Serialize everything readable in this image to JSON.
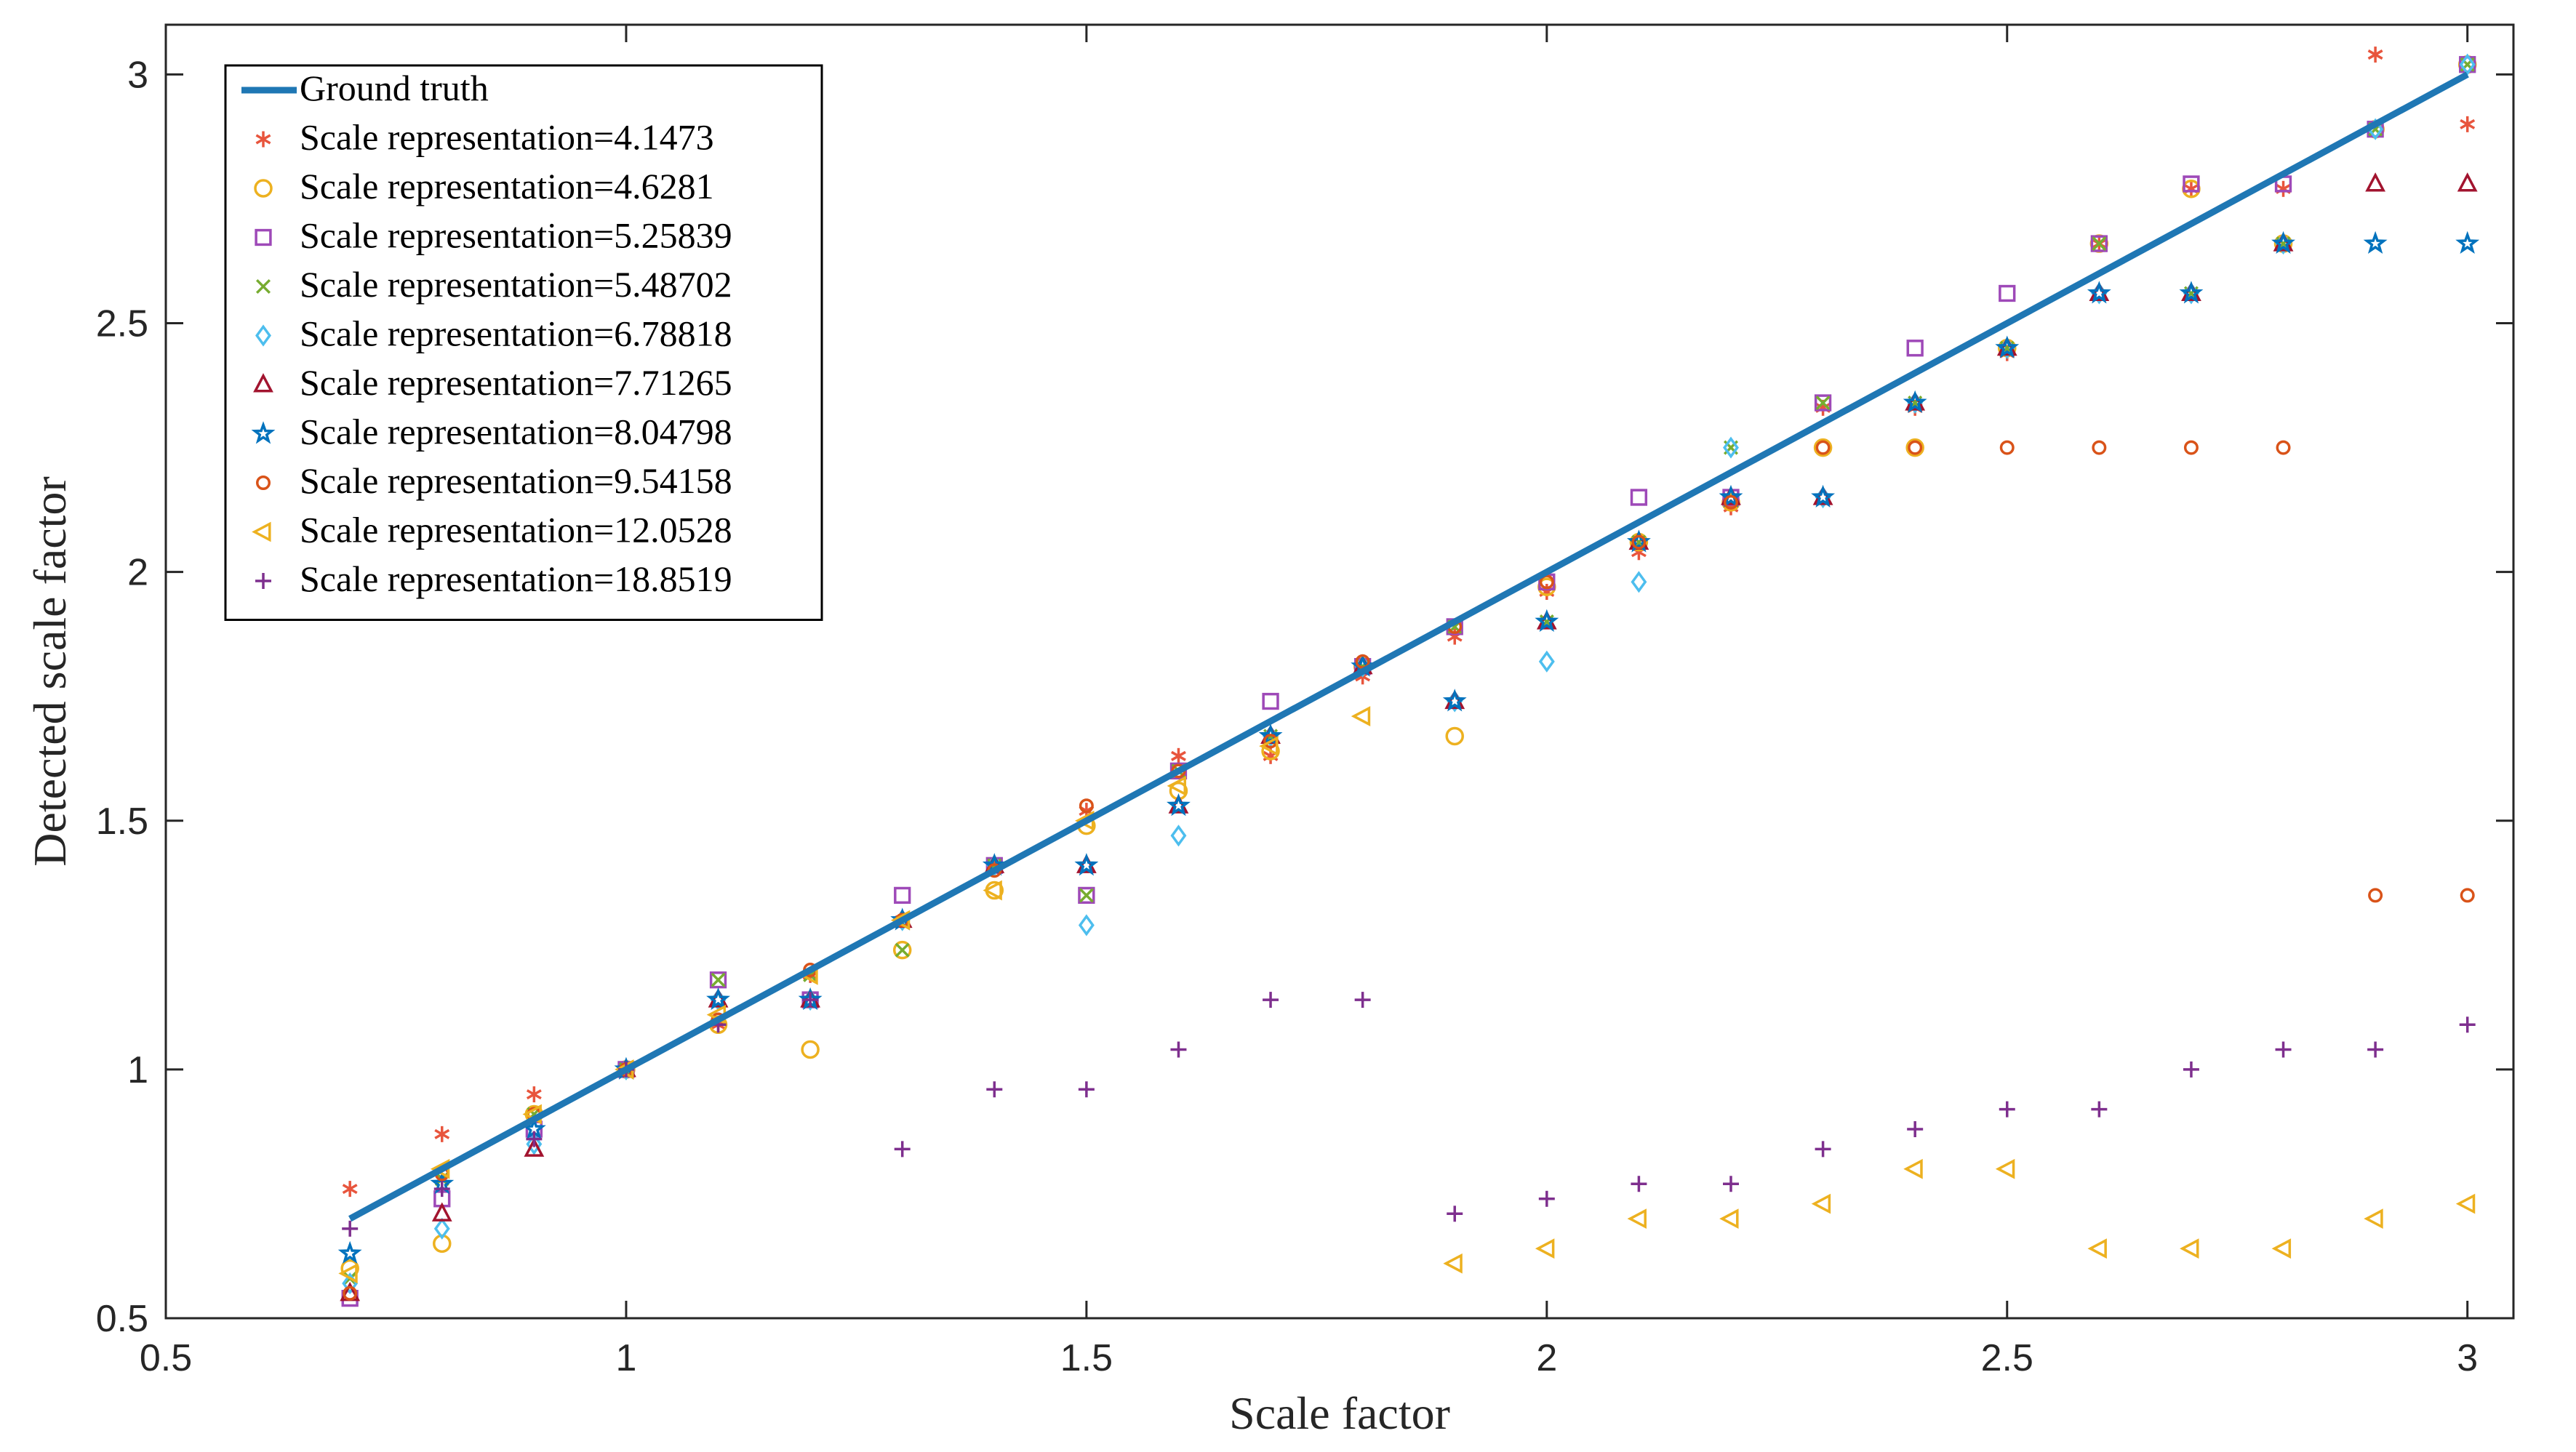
{
  "chart_data": {
    "type": "scatter",
    "title": "",
    "xlabel": "Scale factor",
    "ylabel": "Detected scale factor",
    "xlim": [
      0.5,
      3.05
    ],
    "ylim": [
      0.5,
      3.1
    ],
    "xticks": [
      0.5,
      1,
      1.5,
      2,
      2.5,
      3
    ],
    "yticks": [
      0.5,
      1,
      1.5,
      2,
      2.5,
      3
    ],
    "xtick_labels": [
      "0.5",
      "1",
      "1.5",
      "2",
      "2.5",
      "3"
    ],
    "ytick_labels": [
      "0.5",
      "1",
      "1.5",
      "2",
      "2.5",
      "3"
    ],
    "grid": false,
    "legend_position": "top-left",
    "x": [
      0.7,
      0.8,
      0.9,
      1.0,
      1.1,
      1.2,
      1.3,
      1.4,
      1.5,
      1.6,
      1.7,
      1.8,
      1.9,
      2.0,
      2.1,
      2.2,
      2.3,
      2.4,
      2.5,
      2.6,
      2.7,
      2.8,
      2.9,
      3.0
    ],
    "ground_truth": {
      "name": "Ground truth",
      "color": "#1f77b4",
      "x": [
        0.7,
        3.0
      ],
      "y": [
        0.7,
        3.0
      ]
    },
    "series": [
      {
        "name": "Scale representation=4.1473",
        "label": "Scale representation=4.1473",
        "marker": "asterisk",
        "color": "#e8553d",
        "values": [
          0.76,
          0.87,
          0.95,
          1.0,
          1.09,
          1.19,
          1.3,
          1.41,
          1.52,
          1.63,
          1.63,
          1.79,
          1.87,
          1.96,
          2.04,
          2.13,
          2.33,
          2.33,
          2.44,
          2.66,
          2.77,
          2.77,
          3.04,
          2.9
        ]
      },
      {
        "name": "Scale representation=4.6281",
        "label": "Scale representation=4.6281",
        "marker": "circle",
        "color": "#edb120",
        "values": [
          0.6,
          0.65,
          0.91,
          1.0,
          1.09,
          1.04,
          1.24,
          1.36,
          1.49,
          1.56,
          1.64,
          1.81,
          1.67,
          1.97,
          2.06,
          2.14,
          2.25,
          2.25,
          2.45,
          2.66,
          2.77,
          2.66,
          2.89,
          3.02
        ]
      },
      {
        "name": "Scale representation=5.25839",
        "label": "Scale representation=5.25839",
        "marker": "square",
        "color": "#9e49b8",
        "values": [
          0.54,
          0.74,
          0.88,
          1.0,
          1.18,
          1.14,
          1.35,
          1.41,
          1.35,
          1.6,
          1.74,
          1.81,
          1.89,
          1.98,
          2.15,
          2.15,
          2.34,
          2.45,
          2.56,
          2.66,
          2.78,
          2.78,
          2.89,
          3.02
        ]
      },
      {
        "name": "Scale representation=5.48702",
        "label": "Scale representation=5.48702",
        "marker": "x",
        "color": "#77ac30",
        "values": [
          0.58,
          0.78,
          0.91,
          1.0,
          1.18,
          1.19,
          1.24,
          1.41,
          1.35,
          1.6,
          1.67,
          1.81,
          1.89,
          1.9,
          2.06,
          2.25,
          2.34,
          2.34,
          2.45,
          2.66,
          2.56,
          2.66,
          2.89,
          3.02
        ]
      },
      {
        "name": "Scale representation=6.78818",
        "label": "Scale representation=6.78818",
        "marker": "diamond",
        "color": "#4dbeee",
        "values": [
          0.57,
          0.68,
          0.85,
          1.0,
          1.14,
          1.14,
          1.3,
          1.41,
          1.29,
          1.47,
          1.67,
          1.81,
          1.74,
          1.82,
          1.98,
          2.25,
          2.15,
          2.34,
          2.45,
          2.56,
          2.56,
          2.66,
          2.89,
          3.02
        ]
      },
      {
        "name": "Scale representation=7.71265",
        "label": "Scale representation=7.71265",
        "marker": "triangle-up",
        "color": "#a2142f",
        "values": [
          0.55,
          0.71,
          0.84,
          1.0,
          1.14,
          1.14,
          1.3,
          1.41,
          1.41,
          1.53,
          1.67,
          1.81,
          1.74,
          1.9,
          2.06,
          2.15,
          2.15,
          2.34,
          2.45,
          2.56,
          2.56,
          2.66,
          2.78,
          2.78
        ]
      },
      {
        "name": "Scale representation=8.04798",
        "label": "Scale representation=8.04798",
        "marker": "pentagram",
        "color": "#0072bd",
        "values": [
          0.63,
          0.77,
          0.88,
          1.0,
          1.14,
          1.14,
          1.3,
          1.41,
          1.41,
          1.53,
          1.67,
          1.81,
          1.74,
          1.9,
          2.06,
          2.15,
          2.15,
          2.34,
          2.45,
          2.56,
          2.56,
          2.66,
          2.66,
          2.66
        ]
      },
      {
        "name": "Scale representation=9.54158",
        "label": "Scale representation=9.54158",
        "marker": "circle-small",
        "color": "#d95319",
        "values": [
          0.55,
          0.79,
          0.91,
          1.0,
          1.1,
          1.2,
          1.3,
          1.4,
          1.53,
          1.6,
          1.66,
          1.82,
          1.89,
          1.98,
          2.06,
          2.14,
          2.25,
          2.25,
          2.25,
          2.25,
          2.25,
          2.25,
          1.35,
          1.35
        ]
      },
      {
        "name": "Scale representation=12.0528",
        "label": "Scale representation=12.0528",
        "marker": "triangle-left",
        "color": "#edb120",
        "values": [
          0.59,
          0.8,
          0.91,
          1.0,
          1.11,
          1.19,
          1.3,
          1.36,
          1.5,
          1.57,
          1.65,
          1.71,
          0.61,
          0.64,
          0.7,
          0.7,
          0.73,
          0.8,
          0.8,
          0.64,
          0.64,
          0.64,
          0.7,
          0.73
        ]
      },
      {
        "name": "Scale representation=18.8519",
        "label": "Scale representation=18.8519",
        "marker": "plus",
        "color": "#7e2f8e",
        "values": [
          0.68,
          0.76,
          0.86,
          1.0,
          1.09,
          1.14,
          0.84,
          0.96,
          0.96,
          1.04,
          1.14,
          1.14,
          0.71,
          0.74,
          0.77,
          0.77,
          0.84,
          0.88,
          0.92,
          0.92,
          1.0,
          1.04,
          1.04,
          1.09
        ]
      }
    ]
  }
}
